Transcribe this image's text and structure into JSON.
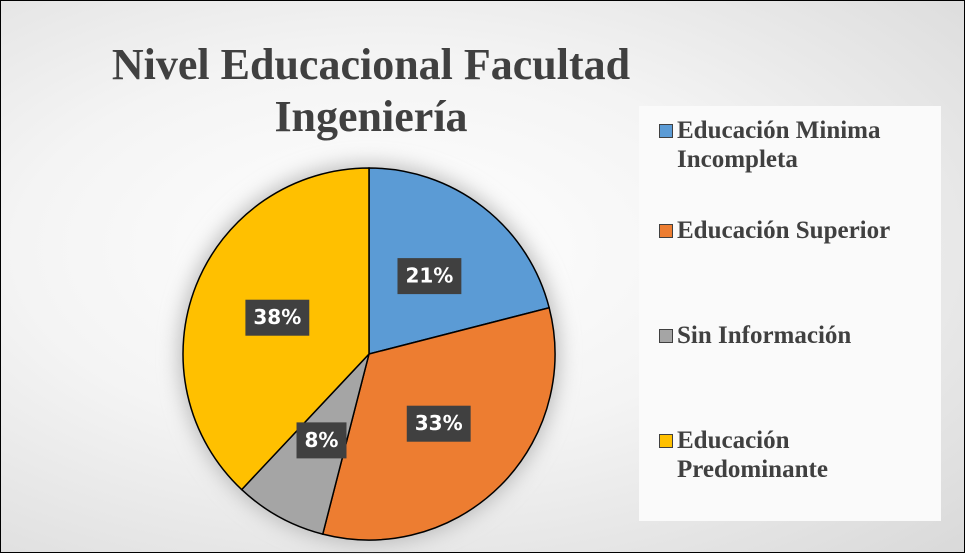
{
  "chart_data": {
    "type": "pie",
    "title": "Nivel Educacional Facultad Ingeniería",
    "categories": [
      "Educación Minima Incompleta",
      "Educación Superior",
      "Sin Información",
      "Educación Predominante"
    ],
    "values": [
      21,
      33,
      8,
      38
    ],
    "value_labels": [
      "21%",
      "33%",
      "8%",
      "38%"
    ],
    "colors": [
      "#5b9bd5",
      "#ed7d31",
      "#a5a5a5",
      "#ffc000"
    ],
    "legend": "right"
  }
}
